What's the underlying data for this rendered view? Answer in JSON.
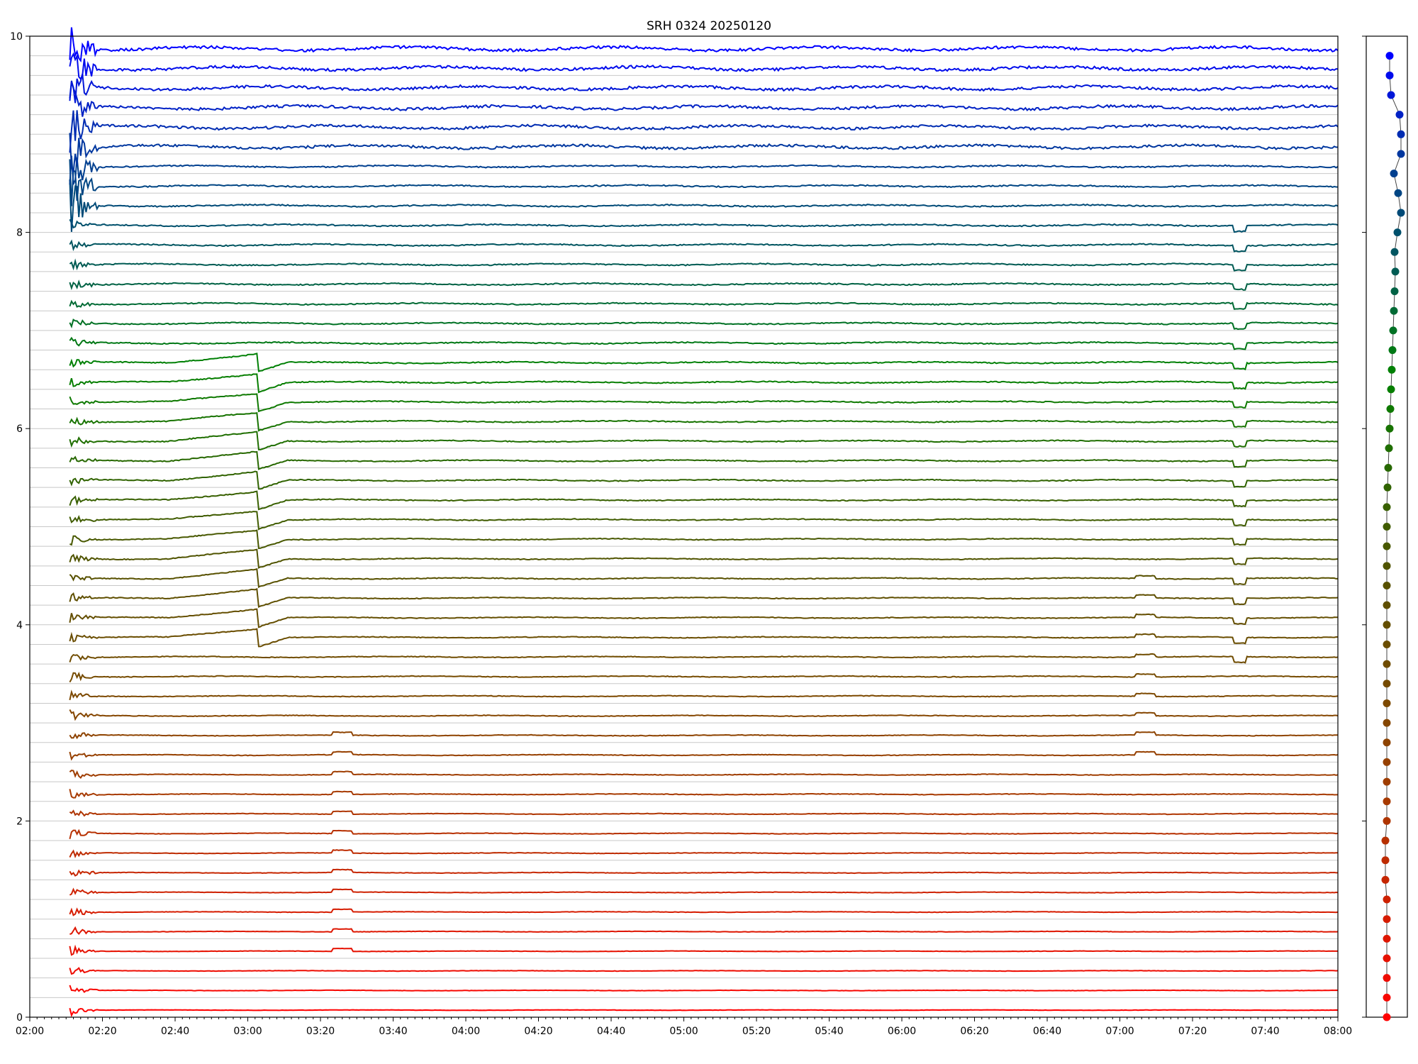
{
  "chart_data": {
    "type": "line",
    "title": "SRH 0324 20250120",
    "xlabel": "",
    "ylabel": "",
    "ylim": [
      0,
      10
    ],
    "x_range": [
      "02:00",
      "08:00"
    ],
    "data_start": "02:11",
    "grid": "horizontal baseline per trace",
    "x_ticks": [
      "02:00",
      "02:20",
      "02:40",
      "03:00",
      "03:20",
      "03:40",
      "04:00",
      "04:20",
      "04:40",
      "05:00",
      "05:20",
      "05:40",
      "06:00",
      "06:20",
      "06:40",
      "07:00",
      "07:20",
      "07:40",
      "08:00"
    ],
    "y_ticks": [
      "0",
      "2",
      "4",
      "6",
      "8",
      "10"
    ],
    "series_count": 50,
    "trace_spacing": 0.2,
    "colors": [
      "#ff0000",
      "#d21e00",
      "#a83a00",
      "#7a4a00",
      "#5a5000",
      "#2e6400",
      "#008200",
      "#005a55",
      "#003c96",
      "#0000ff"
    ],
    "events": [
      {
        "time": "03:03",
        "trace_range": [
          19,
          33
        ],
        "kind": "step"
      },
      {
        "time": "07:33",
        "trace_range": [
          18,
          40
        ],
        "kind": "dip"
      },
      {
        "time": "03:26",
        "trace_range": [
          3,
          14
        ],
        "kind": "bump"
      },
      {
        "time": "07:07",
        "trace_range": [
          13,
          22
        ],
        "kind": "bump"
      }
    ],
    "side_panel": {
      "type": "scatter",
      "description_values": "dot x-offset per trace (relative)",
      "x_offsets": [
        0,
        0,
        0,
        0,
        0,
        0,
        0,
        -0.02,
        -0.02,
        -0.02,
        0,
        0,
        0,
        0,
        0,
        0,
        0,
        0,
        0,
        0,
        0,
        0,
        0,
        0,
        0,
        0,
        0,
        0.01,
        0.02,
        0.03,
        0.04,
        0.05,
        0.06,
        0.07,
        0.08,
        0.09,
        0.1,
        0.11,
        0.12,
        0.11,
        0.15,
        0.2,
        0.16,
        0.1,
        0.2,
        0.2,
        0.18,
        0.06,
        0.04,
        0.04
      ]
    }
  }
}
